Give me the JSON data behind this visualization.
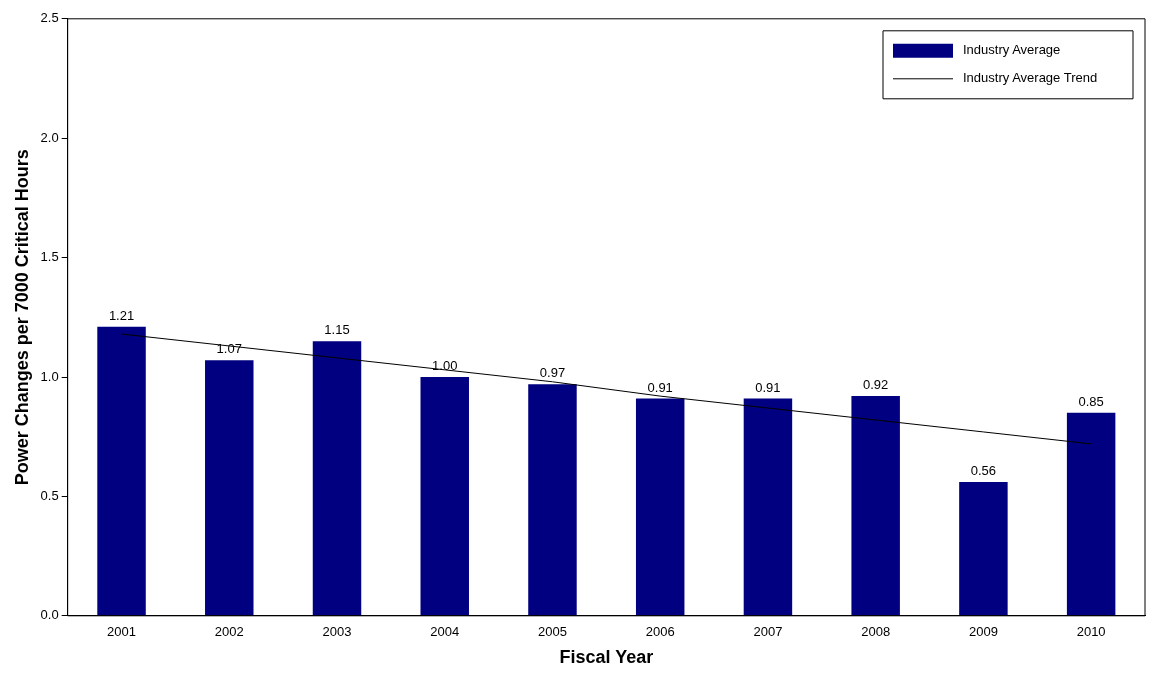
{
  "chart_data": {
    "type": "bar",
    "xlabel": "Fiscal Year",
    "ylabel": "Power Changes per 7000 Critical Hours",
    "categories": [
      "2001",
      "2002",
      "2003",
      "2004",
      "2005",
      "2006",
      "2007",
      "2008",
      "2009",
      "2010"
    ],
    "series": [
      {
        "name": "Industry Average",
        "color": "#000080",
        "values": [
          1.21,
          1.07,
          1.15,
          1.0,
          0.97,
          0.91,
          0.91,
          0.92,
          0.56,
          0.85
        ],
        "value_labels": [
          "1.21",
          "1.07",
          "1.15",
          "1.00",
          "0.97",
          "0.91",
          "0.91",
          "0.92",
          "0.56",
          "0.85"
        ]
      },
      {
        "name": "Industry Average Trend",
        "type": "line",
        "color": "#000000",
        "values": [
          1.18,
          1.13,
          1.08,
          1.03,
          0.98,
          0.92,
          0.87,
          0.82,
          0.77,
          0.72
        ]
      }
    ],
    "ylim": [
      0,
      2.5
    ],
    "yticks": [
      {
        "value": 0,
        "label": "0.0"
      },
      {
        "value": 0.5,
        "label": "0.5"
      },
      {
        "value": 1,
        "label": "1.0"
      },
      {
        "value": 1.5,
        "label": "1.5"
      },
      {
        "value": 2,
        "label": "2.0"
      },
      {
        "value": 2.5,
        "label": "2.5"
      }
    ],
    "legend": "top right",
    "marker": "none"
  }
}
